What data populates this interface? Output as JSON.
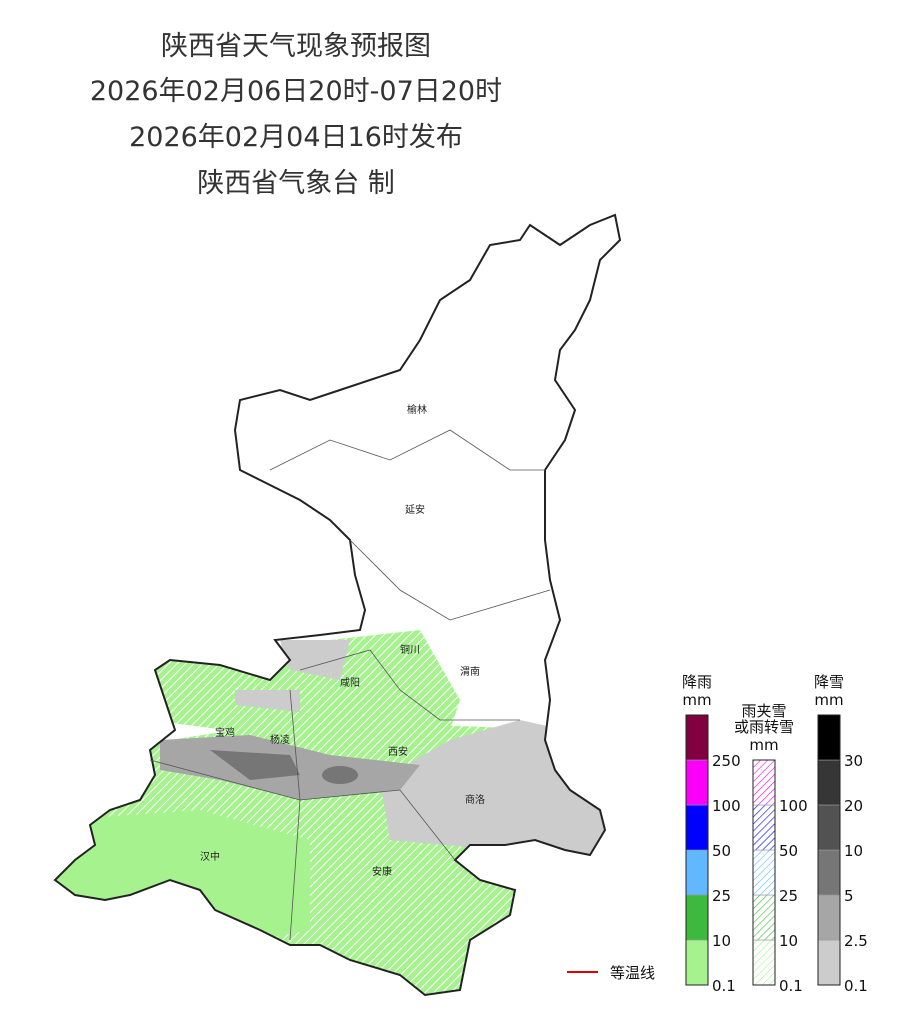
{
  "header": {
    "title": "陕西省天气现象预报图",
    "period": "2026年02月06日20时-07日20时",
    "issued": "2026年02月04日16时发布",
    "agency": "陕西省气象台 制"
  },
  "cities": [
    "榆林",
    "延安",
    "铜川",
    "渭南",
    "咸阳",
    "宝鸡",
    "杨凌",
    "西安",
    "商洛",
    "汉中",
    "安康"
  ],
  "legend": {
    "isotherm": {
      "label": "等温线",
      "color": "#e00000"
    },
    "scales": [
      {
        "title": [
          "降雨"
        ],
        "unit": "mm",
        "hatched": false,
        "ticks": [
          0.1,
          10,
          25,
          50,
          100,
          250
        ],
        "colors": [
          "#a6f28f",
          "#3dba3d",
          "#61b8ff",
          "#0000ff",
          "#fa00fa",
          "#800040"
        ]
      },
      {
        "title": [
          "雨夹雪",
          "或雨转雪"
        ],
        "unit": "mm",
        "hatched": true,
        "ticks": [
          0.1,
          10,
          25,
          50,
          100
        ],
        "colors": [
          "#a6f28f",
          "#3dba3d",
          "#61b8ff",
          "#0000ff",
          "#fa00fa"
        ]
      },
      {
        "title": [
          "降雪"
        ],
        "unit": "mm",
        "hatched": false,
        "ticks": [
          0.1,
          2.5,
          5,
          10,
          20,
          30
        ],
        "colors": [
          "#cccccc",
          "#a6a6a6",
          "#767676",
          "#525252",
          "#363636",
          "#000000"
        ]
      }
    ]
  }
}
